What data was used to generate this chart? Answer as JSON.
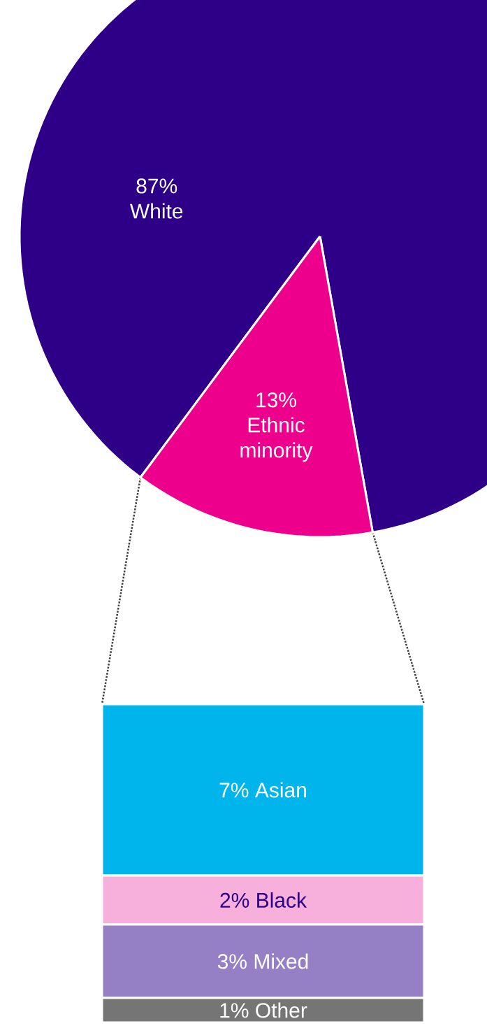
{
  "chart_data": [
    {
      "type": "pie",
      "categories": [
        "White",
        "Ethnic minority"
      ],
      "values": [
        87,
        13
      ],
      "colors": [
        "#2e0087",
        "#ec008c"
      ],
      "value_labels": [
        "87%",
        "13%"
      ]
    },
    {
      "type": "bar",
      "stacked": true,
      "categories": [
        null
      ],
      "series": [
        {
          "name": "Other",
          "color": "#757575",
          "values": [
            1
          ],
          "value_labels": [
            "1%"
          ]
        },
        {
          "name": "Mixed",
          "color": "#9580c5",
          "values": [
            3
          ],
          "value_labels": [
            "3%"
          ]
        },
        {
          "name": "Black",
          "color": "#f7b0dc",
          "values": [
            2
          ],
          "value_labels": [
            "2%"
          ]
        },
        {
          "name": "Asian",
          "color": "#00b5ec",
          "values": [
            7
          ],
          "value_labels": [
            "7%"
          ]
        }
      ]
    }
  ]
}
